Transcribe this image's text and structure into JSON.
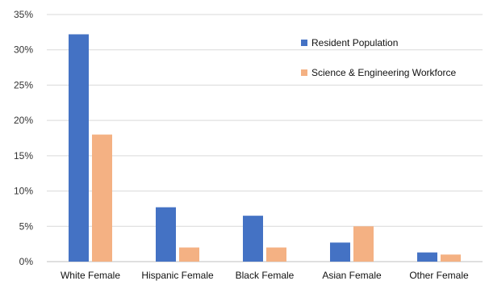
{
  "chart_data": {
    "type": "bar",
    "categories": [
      "White Female",
      "Hispanic Female",
      "Black Female",
      "Asian Female",
      "Other Female"
    ],
    "series": [
      {
        "name": "Resident Population",
        "values": [
          32.2,
          7.7,
          6.5,
          2.7,
          1.3
        ],
        "color": "#4472c4"
      },
      {
        "name": "Science & Engineering Workforce",
        "values": [
          18.0,
          2.0,
          2.0,
          5.0,
          1.0
        ],
        "color": "#f4b183"
      }
    ],
    "yticks": [
      "0%",
      "5%",
      "10%",
      "15%",
      "20%",
      "25%",
      "30%",
      "35%"
    ],
    "ylim": [
      0,
      35
    ],
    "ystep": 5,
    "grid": true,
    "legend_position": "top-right",
    "title": "",
    "xlabel": "",
    "ylabel": ""
  }
}
